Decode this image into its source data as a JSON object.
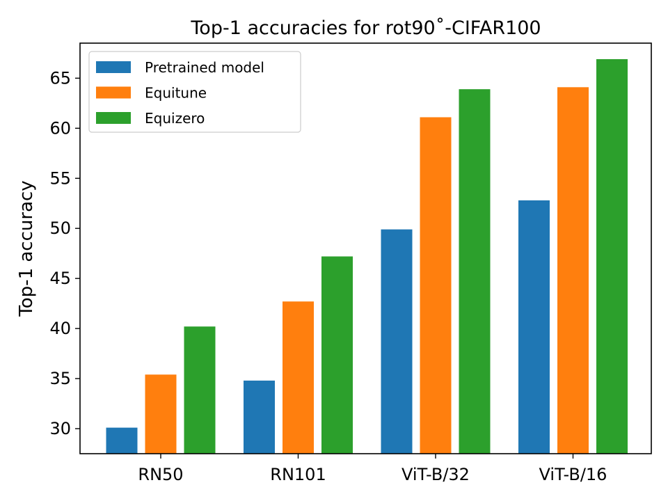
{
  "chart_data": {
    "type": "bar",
    "title": "Top-1 accuracies for rot90˚-CIFAR100",
    "xlabel": "",
    "ylabel": "Top-1 accuracy",
    "categories": [
      "RN50",
      "RN101",
      "ViT-B/32",
      "ViT-B/16"
    ],
    "series": [
      {
        "name": "Pretrained model",
        "color": "#1f77b4",
        "values": [
          30.1,
          34.8,
          49.9,
          52.8
        ]
      },
      {
        "name": "Equitune",
        "color": "#ff7f0e",
        "values": [
          35.4,
          42.7,
          61.1,
          64.1
        ]
      },
      {
        "name": "Equizero",
        "color": "#2ca02c",
        "values": [
          40.2,
          47.2,
          63.9,
          66.9
        ]
      }
    ],
    "ylim": [
      27.5,
      68.5
    ],
    "yticks": [
      30,
      35,
      40,
      45,
      50,
      55,
      60,
      65
    ],
    "legend": "top-left",
    "grid": false
  }
}
